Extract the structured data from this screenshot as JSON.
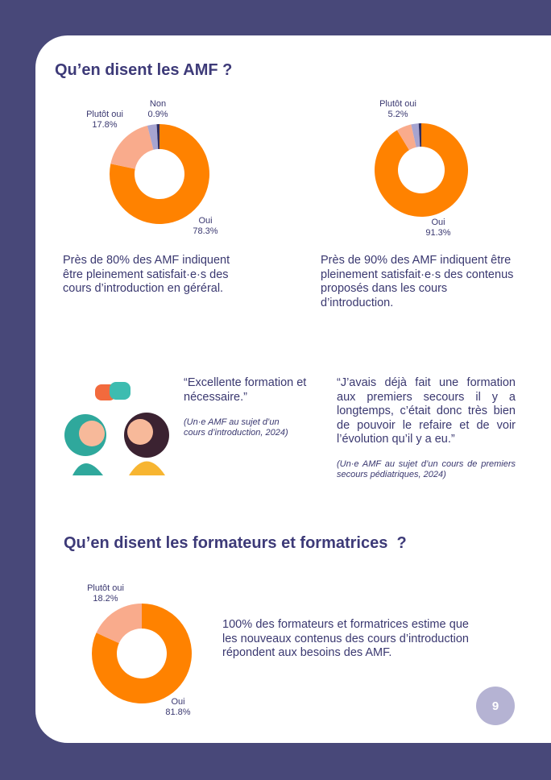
{
  "header": {
    "title": "Qu’en disent les AMF ?"
  },
  "chart_data": [
    {
      "type": "donut",
      "categories": [
        "Oui",
        "Plutôt oui",
        null,
        "Non"
      ],
      "values": [
        78.3,
        17.8,
        3.0,
        0.9
      ],
      "value_labels": [
        "78.3%",
        "17.8%",
        null,
        "0.9%"
      ],
      "colors": [
        "#ff8200",
        "#f9ab8c",
        "#a6a4d0",
        "#2f2d5e"
      ]
    },
    {
      "type": "donut",
      "categories": [
        "Oui",
        "Plutôt oui",
        null,
        null
      ],
      "values": [
        91.3,
        5.2,
        2.6,
        0.9
      ],
      "value_labels": [
        "91.3%",
        "5.2%",
        null,
        null
      ],
      "colors": [
        "#ff8200",
        "#f9ab8c",
        "#a6a4d0",
        "#2f2d5e"
      ]
    },
    {
      "type": "donut",
      "categories": [
        "Oui",
        "Plutôt oui"
      ],
      "values": [
        81.8,
        18.2
      ],
      "value_labels": [
        "81.8%",
        "18.2%"
      ],
      "colors": [
        "#ff8200",
        "#f9ab8c"
      ]
    }
  ],
  "paragraphs": [
    "Près de 80% des AMF indiquent être pleinement satisfait·e·s des cours d’introduction en géréral.",
    "Près de 90% des AMF indiquent être pleinement satisfait·e·s des contenus proposés dans les cours d’introduction."
  ],
  "quotes": [
    {
      "text": "“Excellente formation et nécessaire.”",
      "source": "(Un·e AMF au sujet d’un cours d’introduction, 2024)"
    },
    {
      "text": "“J’avais déjà fait une formation aux premiers secours il y a longtemps, c’était donc très bien de pouvoir le refaire et de voir l’évolution qu’il y a eu.”",
      "source": "(Un·e AMF au sujet d’un cours de premiers secours pédiatriques, 2024)"
    }
  ],
  "section2": {
    "title": "Qu’en disent les formateurs et formatrices  ?",
    "text": "100% des formateurs et formatrices estime que les nouveaux contenus des cours d’introduction répondent aux besoins des AMF."
  },
  "page_number": "9"
}
